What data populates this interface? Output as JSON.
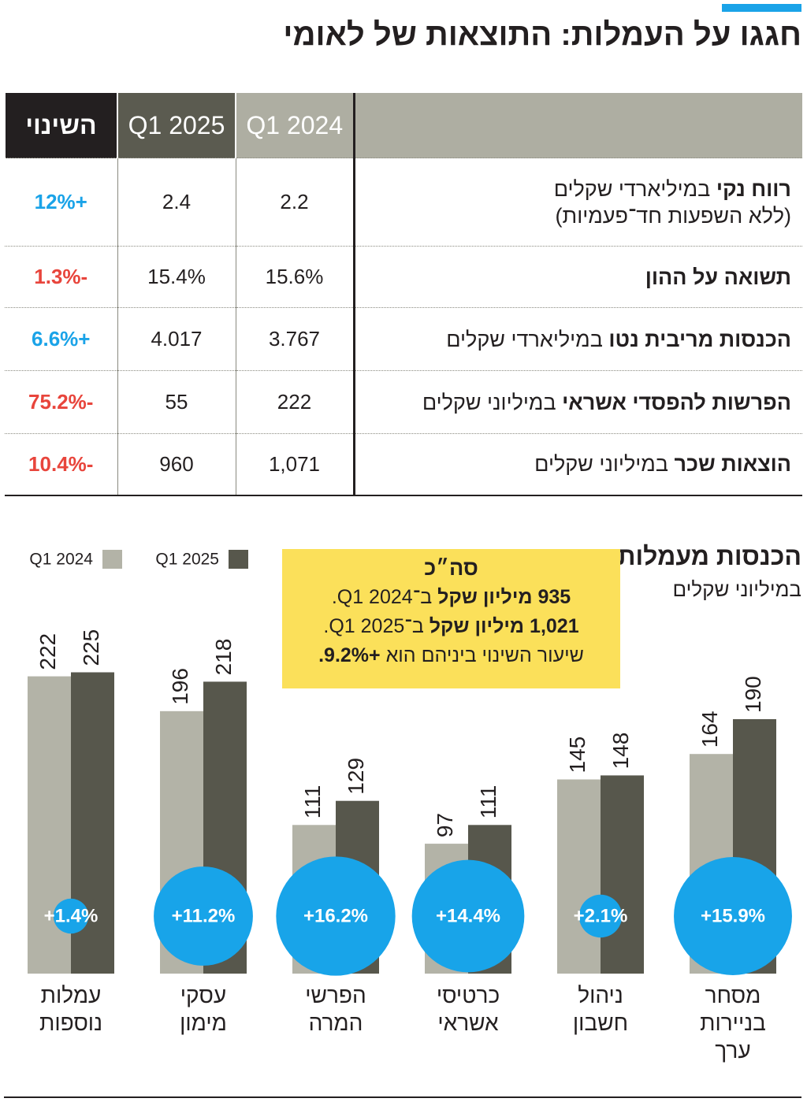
{
  "title": "חגגו על העמלות: התוצאות של לאומי",
  "table": {
    "columns": [
      "Q1 2024",
      "Q1 2025",
      "השינוי"
    ],
    "rows": [
      {
        "label_bold": "רווח נקי",
        "label_rest": "במיליארדי שקלים",
        "label_note": "(ללא השפעות חד־פעמיות)",
        "values": [
          "2.2",
          "2.4"
        ],
        "change": "+12%"
      },
      {
        "label_bold": "תשואה על ההון",
        "values": [
          "15.6%",
          "15.4%"
        ],
        "change": "-1.3%"
      },
      {
        "label_bold": "הכנסות מריבית נטו",
        "label_rest": "במיליארדי שקלים",
        "values": [
          "3.767",
          "4.017"
        ],
        "change": "+6.6%"
      },
      {
        "label_bold": "הפרשות להפסדי אשראי",
        "label_rest": "במיליוני שקלים",
        "values": [
          "222",
          "55"
        ],
        "change": "-75.2%"
      },
      {
        "label_bold": "הוצאות שכר",
        "label_rest": "במיליוני שקלים",
        "values": [
          "1,071",
          "960"
        ],
        "change": "-10.4%"
      }
    ]
  },
  "chart_data": {
    "type": "bar",
    "title": "הכנסות מעמלות",
    "subtitle": "במיליוני שקלים",
    "categories": [
      "מסחר בניירות ערך",
      "ניהול חשבון",
      "כרטיסי אשראי",
      "הפרשי המרה",
      "עסקי מימון",
      "עמלות נוספות"
    ],
    "series": [
      {
        "name": "Q1 2024",
        "color": "#b3b3a7",
        "values": [
          164,
          145,
          97,
          111,
          196,
          222
        ]
      },
      {
        "name": "Q1 2025",
        "color": "#57574c",
        "values": [
          190,
          148,
          111,
          129,
          218,
          225
        ]
      }
    ],
    "changes": [
      15.9,
      2.1,
      14.4,
      16.2,
      11.2,
      1.4
    ],
    "change_labels": [
      "+15.9%",
      "+2.1%",
      "+14.4%",
      "+16.2%",
      "+11.2%",
      "+1.4%"
    ],
    "change_color": "#18a4e9",
    "note": {
      "title": "סה״כ",
      "lines": [
        [
          "935 מיליון שקל",
          "ב־Q1 2024."
        ],
        [
          "1,021 מיליון שקל",
          "ב־Q1 2025."
        ],
        [
          "שיעור השינוי ביניהם הוא",
          "+9.2%."
        ]
      ]
    }
  }
}
